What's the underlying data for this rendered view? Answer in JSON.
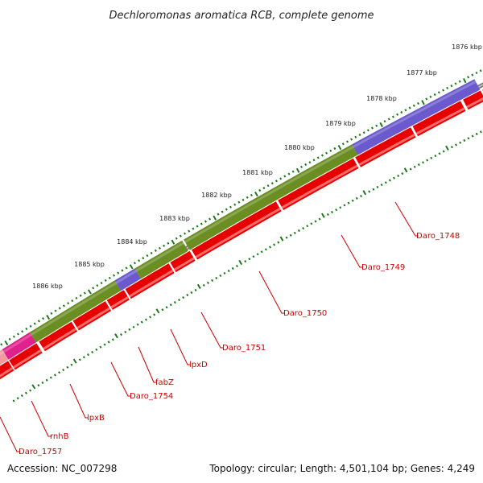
{
  "title": "Dechloromonas aromatica RCB, complete genome",
  "accession": "Accession: NC_007298",
  "summary": "Topology: circular; Length: 4,501,104 bp; Genes: 4,249",
  "colors": {
    "backbone": "#7a7a7a",
    "forward_cds": "#e60000",
    "reverse_cds": "#6b8e23",
    "blue_feature": "#6a5acd",
    "magenta_feature": "#e0208c",
    "pink_feature": "#f19aa0",
    "tick": "#1a7a1a",
    "label": "#cc0000"
  },
  "kbp_ticks": [
    "1876 kbp",
    "1877 kbp",
    "1878 kbp",
    "1879 kbp",
    "1880 kbp",
    "1881 kbp",
    "1882 kbp",
    "1883 kbp",
    "1884 kbp",
    "1885 kbp",
    "1886 kbp"
  ],
  "gene_labels": [
    "Daro_1748",
    "Daro_1749",
    "Daro_1750",
    "Daro_1751",
    "lpxD",
    "fabZ",
    "Daro_1754",
    "lpxB",
    "rnhB",
    "Daro_1757"
  ]
}
